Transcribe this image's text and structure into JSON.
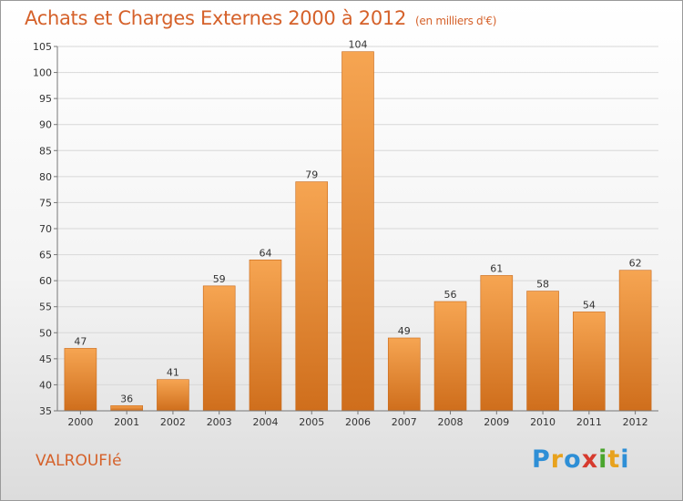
{
  "header": {
    "title": "Achats et Charges Externes 2000 à 2012",
    "subtitle": "(en milliers d'€)"
  },
  "footer": {
    "commune": "VALROUFIé",
    "logo_letters": [
      "P",
      "r",
      "o",
      "x",
      "i",
      "t",
      "i"
    ],
    "logo_colors": [
      "#2e8fd6",
      "#e8a21d",
      "#2e8fd6",
      "#d63a2e",
      "#4aa52e",
      "#e8a21d",
      "#2e8fd6"
    ]
  },
  "chart_data": {
    "type": "bar",
    "title": "Achats et Charges Externes 2000 à 2012",
    "subtitle": "(en milliers d'€)",
    "categories": [
      "2000",
      "2001",
      "2002",
      "2003",
      "2004",
      "2005",
      "2006",
      "2007",
      "2008",
      "2009",
      "2010",
      "2011",
      "2012"
    ],
    "values": [
      47,
      36,
      41,
      59,
      64,
      79,
      104,
      49,
      56,
      61,
      58,
      54,
      62
    ],
    "ylim": [
      35,
      105
    ],
    "yticks": [
      35,
      40,
      45,
      50,
      55,
      60,
      65,
      70,
      75,
      80,
      85,
      90,
      95,
      100,
      105
    ],
    "grid": true,
    "bar_color": "#f0913c"
  }
}
